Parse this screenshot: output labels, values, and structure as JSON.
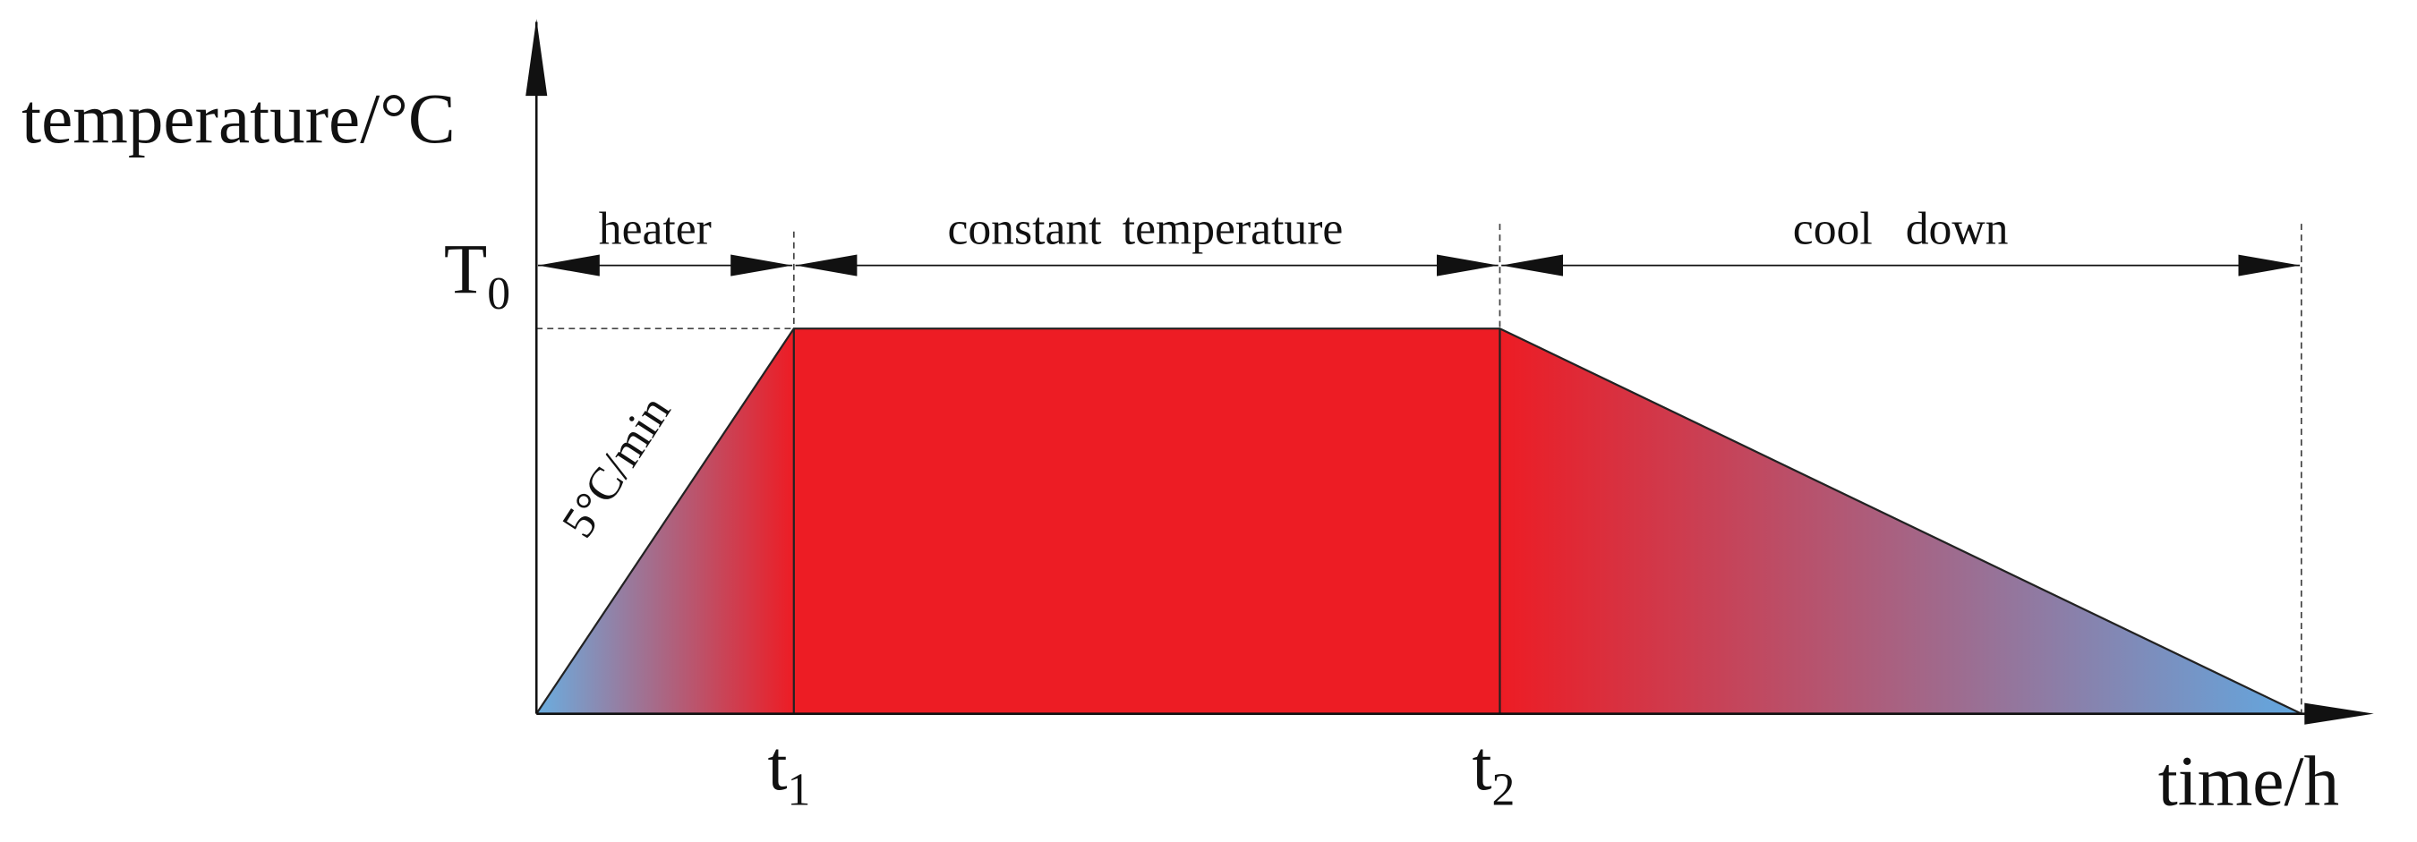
{
  "axes": {
    "y_label": "temperature/°C",
    "x_label": "time/h"
  },
  "levels": {
    "T0": {
      "base": "T",
      "sub": "0"
    }
  },
  "times": [
    {
      "base": "t",
      "sub": "1"
    },
    {
      "base": "t",
      "sub": "2"
    }
  ],
  "phases": [
    "heater",
    "constant temperature",
    "cool down"
  ],
  "rate_label": "5°C/min"
}
